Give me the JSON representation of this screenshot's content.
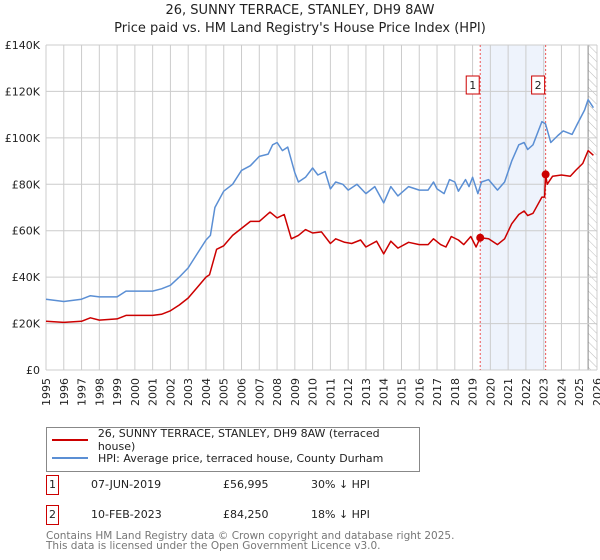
{
  "title": "26, SUNNY TERRACE, STANLEY, DH9 8AW",
  "subtitle": "Price paid vs. HM Land Registry's House Price Index (HPI)",
  "colors": {
    "property": "#cc0000",
    "hpi": "#5b8fd4",
    "shade": "#eef3fc",
    "grid": "#cccccc"
  },
  "chart_data": {
    "type": "line",
    "ylabel": "",
    "xlabel": "",
    "xlim": [
      1995,
      2026
    ],
    "ylim": [
      0,
      140000
    ],
    "yticks": [
      0,
      20000,
      40000,
      60000,
      80000,
      100000,
      120000,
      140000
    ],
    "ytick_labels": [
      "£0",
      "£20K",
      "£40K",
      "£60K",
      "£80K",
      "£100K",
      "£120K",
      "£140K"
    ],
    "xticks": [
      "1995",
      "1996",
      "1997",
      "1998",
      "1999",
      "2000",
      "2001",
      "2002",
      "2003",
      "2004",
      "2005",
      "2006",
      "2007",
      "2008",
      "2009",
      "2010",
      "2011",
      "2012",
      "2013",
      "2014",
      "2015",
      "2016",
      "2017",
      "2018",
      "2019",
      "2020",
      "2021",
      "2022",
      "2023",
      "2024",
      "2025",
      "2026"
    ],
    "grid": true,
    "shaded_range": [
      2019.43,
      2023.11
    ],
    "forecast_hatch_from": 2025.5,
    "series": [
      {
        "name": "26, SUNNY TERRACE, STANLEY, DH9 8AW (terraced house)",
        "color": "#cc0000",
        "x": [
          1995,
          1996,
          1997,
          1997.5,
          1998,
          1999,
          1999.5,
          2000,
          2001,
          2001.5,
          2002,
          2002.5,
          2003,
          2003.5,
          2004,
          2004.2,
          2004.6,
          2005,
          2005.5,
          2006,
          2006.5,
          2007,
          2007.6,
          2008,
          2008.4,
          2008.8,
          2009.2,
          2009.6,
          2010,
          2010.5,
          2011,
          2011.3,
          2011.8,
          2012.2,
          2012.7,
          2013,
          2013.6,
          2014,
          2014.4,
          2014.8,
          2015.4,
          2016,
          2016.5,
          2016.8,
          2017.2,
          2017.5,
          2017.8,
          2018.2,
          2018.5,
          2018.9,
          2019.2,
          2019.43,
          2019.9,
          2020.4,
          2020.8,
          2021.2,
          2021.6,
          2021.9,
          2022.1,
          2022.4,
          2022.9,
          2023.05,
          2023.11,
          2023.2,
          2023.5,
          2024,
          2024.5,
          2024.8,
          2025.2,
          2025.5,
          2025.8
        ],
        "y": [
          21000,
          20500,
          21000,
          22500,
          21500,
          22000,
          23500,
          23500,
          23500,
          24000,
          25500,
          28000,
          31000,
          35500,
          40000,
          41000,
          52000,
          53500,
          58000,
          61000,
          64000,
          64000,
          68000,
          65500,
          67000,
          56500,
          58000,
          60500,
          59000,
          59500,
          54500,
          56500,
          55000,
          54500,
          56000,
          53000,
          55500,
          50000,
          55500,
          52500,
          55000,
          54000,
          54000,
          56500,
          54000,
          53000,
          57500,
          56000,
          54000,
          57500,
          53000,
          57000,
          56500,
          54000,
          56500,
          63000,
          67000,
          68500,
          66500,
          67500,
          74500,
          74500,
          84250,
          80000,
          83500,
          84000,
          83500,
          86000,
          89000,
          94500,
          92500
        ]
      },
      {
        "name": "HPI: Average price, terraced house, County Durham",
        "color": "#5b8fd4",
        "x": [
          1995,
          1996,
          1997,
          1997.5,
          1998,
          1999,
          1999.5,
          2000,
          2001,
          2001.5,
          2002,
          2002.5,
          2003,
          2003.5,
          2004,
          2004.25,
          2004.5,
          2005,
          2005.5,
          2006,
          2006.5,
          2007,
          2007.5,
          2007.75,
          2008,
          2008.3,
          2008.6,
          2009,
          2009.2,
          2009.6,
          2010,
          2010.3,
          2010.7,
          2011,
          2011.3,
          2011.7,
          2012,
          2012.5,
          2013,
          2013.5,
          2014,
          2014.4,
          2014.8,
          2015.4,
          2016,
          2016.5,
          2016.8,
          2017,
          2017.4,
          2017.7,
          2018,
          2018.2,
          2018.6,
          2018.8,
          2019,
          2019.3,
          2019.5,
          2019.9,
          2020.4,
          2020.8,
          2021.2,
          2021.6,
          2021.9,
          2022.1,
          2022.4,
          2022.9,
          2023.1,
          2023.4,
          2023.8,
          2024.1,
          2024.6,
          2024.9,
          2025.3,
          2025.5,
          2025.8
        ],
        "y": [
          30500,
          29500,
          30500,
          32000,
          31500,
          31500,
          34000,
          34000,
          34000,
          35000,
          36500,
          40000,
          44000,
          50000,
          56000,
          58000,
          70000,
          77000,
          80000,
          86000,
          88000,
          92000,
          93000,
          97000,
          98000,
          94500,
          96000,
          85000,
          81000,
          83000,
          87000,
          84000,
          85500,
          78000,
          81000,
          80000,
          77500,
          80000,
          76000,
          79000,
          72000,
          79000,
          75000,
          79000,
          77500,
          77500,
          81000,
          78000,
          76000,
          82000,
          81000,
          77000,
          82000,
          79000,
          83000,
          76000,
          81000,
          82000,
          77500,
          81000,
          90000,
          97000,
          98000,
          95000,
          97000,
          107000,
          106000,
          98000,
          101000,
          103000,
          101500,
          106000,
          112000,
          116500,
          113000
        ]
      }
    ],
    "annotations": [
      {
        "label": "1",
        "x": 2019.43,
        "y": 56995
      },
      {
        "label": "2",
        "x": 2023.11,
        "y": 84250
      }
    ]
  },
  "legend": {
    "property": "26, SUNNY TERRACE, STANLEY, DH9 8AW (terraced house)",
    "hpi": "HPI: Average price, terraced house, County Durham"
  },
  "transactions": [
    {
      "num": "1",
      "date": "07-JUN-2019",
      "price": "£56,995",
      "hpi": "30% ↓ HPI"
    },
    {
      "num": "2",
      "date": "10-FEB-2023",
      "price": "£84,250",
      "hpi": "18% ↓ HPI"
    }
  ],
  "footer": {
    "line1": "Contains HM Land Registry data © Crown copyright and database right 2025.",
    "line2": "This data is licensed under the Open Government Licence v3.0."
  }
}
